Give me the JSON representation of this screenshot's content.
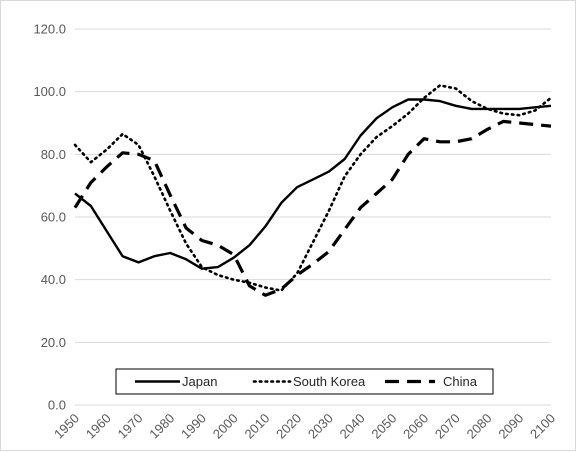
{
  "chart_data": {
    "type": "line",
    "title": "",
    "xlabel": "",
    "ylabel": "",
    "x": [
      1950,
      1955,
      1960,
      1965,
      1970,
      1975,
      1980,
      1985,
      1990,
      1995,
      2000,
      2005,
      2010,
      2015,
      2020,
      2025,
      2030,
      2035,
      2040,
      2045,
      2050,
      2055,
      2060,
      2065,
      2070,
      2075,
      2080,
      2085,
      2090,
      2095,
      2100
    ],
    "x_ticks": [
      "1950",
      "1960",
      "1970",
      "1980",
      "1990",
      "2000",
      "2010",
      "2020",
      "2030",
      "2040",
      "2050",
      "2060",
      "2070",
      "2080",
      "2090",
      "2100"
    ],
    "y_ticks": [
      "0.0",
      "20.0",
      "40.0",
      "60.0",
      "80.0",
      "100.0",
      "120.0"
    ],
    "ylim": [
      0,
      120
    ],
    "xlim": [
      1950,
      2100
    ],
    "grid": "horizontal",
    "legend_position": "bottom",
    "series": [
      {
        "name": "Japan",
        "style": "solid",
        "color": "#000000",
        "values": [
          67.5,
          63.5,
          55.5,
          47.5,
          45.5,
          47.5,
          48.5,
          46.5,
          43.5,
          44.0,
          47.0,
          51.0,
          57.0,
          64.5,
          69.5,
          72.0,
          74.5,
          78.5,
          86.0,
          91.5,
          95.0,
          97.5,
          97.5,
          97.0,
          95.5,
          94.5,
          94.5,
          94.5,
          94.5,
          95.0,
          95.5
        ]
      },
      {
        "name": "South Korea",
        "style": "dotted",
        "color": "#000000",
        "values": [
          83.0,
          77.5,
          81.5,
          86.5,
          83.0,
          73.0,
          62.0,
          51.5,
          44.0,
          41.5,
          40.0,
          39.0,
          37.5,
          36.5,
          42.0,
          52.0,
          62.0,
          73.0,
          80.0,
          85.5,
          89.0,
          93.0,
          98.0,
          102.0,
          101.0,
          97.0,
          94.5,
          93.0,
          92.5,
          94.0,
          98.0
        ]
      },
      {
        "name": "China",
        "style": "dashed",
        "color": "#000000",
        "values": [
          63.0,
          71.0,
          76.0,
          80.5,
          80.0,
          78.0,
          67.0,
          56.5,
          52.5,
          51.0,
          48.0,
          38.0,
          35.0,
          37.0,
          41.5,
          45.0,
          49.0,
          56.0,
          63.0,
          67.5,
          72.0,
          80.0,
          85.0,
          84.0,
          84.0,
          85.0,
          88.0,
          90.5,
          90.0,
          89.5,
          89.0
        ]
      }
    ]
  }
}
